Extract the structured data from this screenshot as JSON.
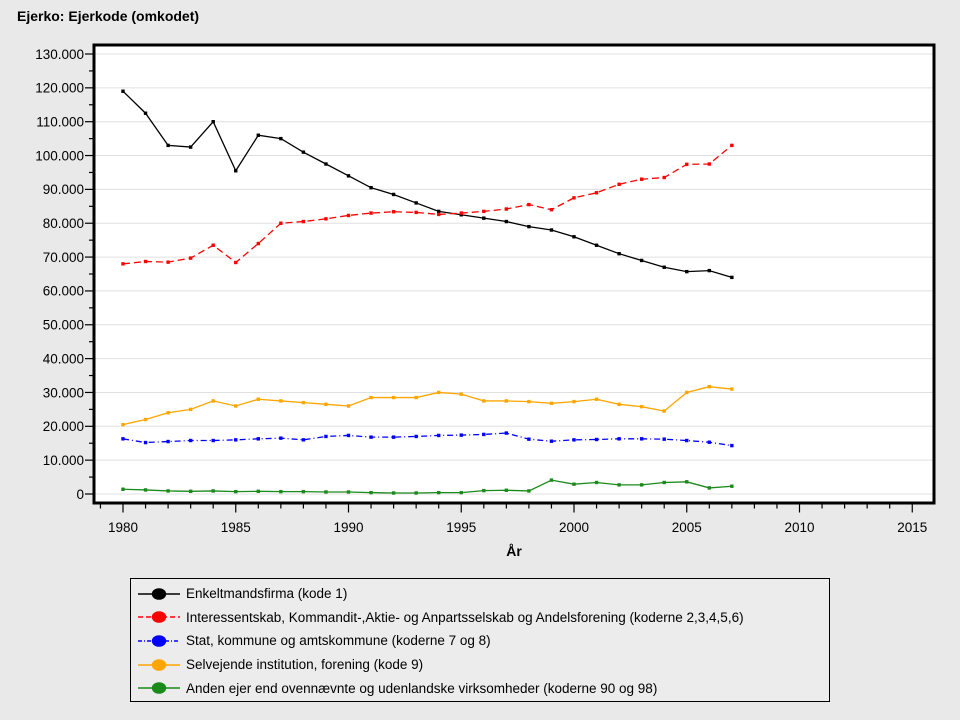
{
  "chart_data": {
    "type": "line",
    "title": "Ejerko: Ejerkode (omkodet)",
    "xlabel": "År",
    "ylabel": "",
    "xlim": [
      1978.7,
      2016.1
    ],
    "ylim": [
      0,
      130000
    ],
    "grid": "horizontal-only",
    "legend_position": "bottom-left",
    "x_tick_labels": [
      "1980",
      "1985",
      "1990",
      "1995",
      "2000",
      "2005",
      "2010",
      "2015"
    ],
    "y_tick_labels": [
      "0",
      "10.000",
      "20.000",
      "30.000",
      "40.000",
      "50.000",
      "60.000",
      "70.000",
      "80.000",
      "90.000",
      "100.000",
      "110.000",
      "120.000",
      "130.000"
    ],
    "y_tick_step": 10000,
    "x": [
      1980,
      1981,
      1982,
      1983,
      1984,
      1985,
      1986,
      1987,
      1988,
      1989,
      1990,
      1991,
      1992,
      1993,
      1994,
      1995,
      1996,
      1997,
      1998,
      1999,
      2000,
      2001,
      2002,
      2003,
      2004,
      2005,
      2006,
      2007
    ],
    "series": [
      {
        "name": "Enkeltmandsfirma (kode 1)",
        "color": "#000000",
        "dash": "solid",
        "values": [
          119000,
          112500,
          103000,
          102500,
          110000,
          95500,
          106000,
          105000,
          101000,
          97500,
          94000,
          90500,
          88500,
          86000,
          83500,
          82500,
          81500,
          80500,
          79000,
          78000,
          76000,
          73500,
          71000,
          69000,
          67000,
          65700,
          66000,
          64000
        ]
      },
      {
        "name": "Interessentskab, Kommandit-,Aktie- og Anpartsselskab og Andelsforening (koderne 2,3,4,5,6)",
        "color": "#ff0000",
        "dash": "dash",
        "values": [
          68000,
          68700,
          68500,
          69700,
          73500,
          68400,
          74000,
          80000,
          80500,
          81300,
          82300,
          83000,
          83400,
          83200,
          82600,
          83000,
          83500,
          84200,
          85500,
          84000,
          87500,
          89000,
          91500,
          93000,
          93500,
          97400,
          97500,
          103000
        ]
      },
      {
        "name": "Stat, kommune og amtskommune (koderne 7 og 8)",
        "color": "#0000ff",
        "dash": "dash-dot",
        "values": [
          16300,
          15200,
          15500,
          15800,
          15800,
          16000,
          16300,
          16500,
          16000,
          17000,
          17300,
          16800,
          16800,
          17000,
          17300,
          17400,
          17600,
          18000,
          16200,
          15600,
          16000,
          16100,
          16300,
          16300,
          16200,
          15800,
          15300,
          14300
        ]
      },
      {
        "name": "Selvejende institution, forening (kode 9)",
        "color": "#ffa500",
        "dash": "solid",
        "values": [
          20500,
          22000,
          24000,
          25000,
          27500,
          26000,
          28000,
          27500,
          27000,
          26500,
          26000,
          28500,
          28500,
          28500,
          30000,
          29500,
          27500,
          27500,
          27300,
          26800,
          27300,
          28000,
          26500,
          25800,
          24500,
          30000,
          31700,
          31000
        ]
      },
      {
        "name": "Anden ejer end ovennævnte og udenlandske virksomheder (koderne 90 og 98)",
        "color": "#1a8a1a",
        "dash": "solid",
        "values": [
          1400,
          1200,
          900,
          800,
          900,
          700,
          800,
          700,
          700,
          600,
          600,
          400,
          300,
          300,
          400,
          400,
          1000,
          1100,
          900,
          4100,
          2900,
          3400,
          2700,
          2700,
          3400,
          3600,
          1800,
          2300
        ]
      }
    ]
  }
}
